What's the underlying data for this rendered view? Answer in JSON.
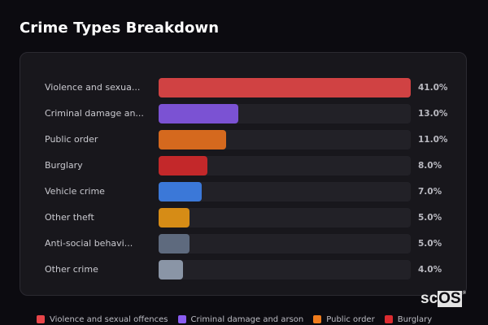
{
  "header": {
    "title": "Crime Types Breakdown"
  },
  "chart_data": {
    "type": "bar",
    "orientation": "horizontal",
    "title": "Crime Types Breakdown",
    "xlabel": "",
    "ylabel": "",
    "value_format": "percent",
    "grid": false,
    "legend_position": "bottom",
    "max_value": 41.0,
    "categories": [
      "Violence and sexual offences",
      "Criminal damage and arson",
      "Public order",
      "Burglary",
      "Vehicle crime",
      "Other theft",
      "Anti-social behaviour",
      "Other crime"
    ],
    "display_labels": [
      "Violence and sexua...",
      "Criminal damage an...",
      "Public order",
      "Burglary",
      "Vehicle crime",
      "Other theft",
      "Anti-social behavi...",
      "Other crime"
    ],
    "values": [
      41.0,
      13.0,
      11.0,
      8.0,
      7.0,
      5.0,
      5.0,
      4.0
    ],
    "value_labels": [
      "41.0%",
      "13.0%",
      "11.0%",
      "8.0%",
      "7.0%",
      "5.0%",
      "5.0%",
      "4.0%"
    ],
    "colors": [
      "#d04243",
      "#7b52d3",
      "#d5691e",
      "#c3282a",
      "#3b78d8",
      "#d68c16",
      "#5e6a7e",
      "#8a95a6"
    ]
  },
  "rows": [
    {
      "label": "Violence and sexua...",
      "value": "41.0%",
      "color": "#d04243",
      "pct": 41.0
    },
    {
      "label": "Criminal damage an...",
      "value": "13.0%",
      "color": "#7b52d3",
      "pct": 13.0
    },
    {
      "label": "Public order",
      "value": "11.0%",
      "color": "#d5691e",
      "pct": 11.0
    },
    {
      "label": "Burglary",
      "value": "8.0%",
      "color": "#c3282a",
      "pct": 8.0
    },
    {
      "label": "Vehicle crime",
      "value": "7.0%",
      "color": "#3b78d8",
      "pct": 7.0
    },
    {
      "label": "Other theft",
      "value": "5.0%",
      "color": "#d68c16",
      "pct": 5.0
    },
    {
      "label": "Anti-social behavi...",
      "value": "5.0%",
      "color": "#5e6a7e",
      "pct": 5.0
    },
    {
      "label": "Other crime",
      "value": "4.0%",
      "color": "#8a95a6",
      "pct": 4.0
    }
  ],
  "legend": [
    {
      "label": "Violence and sexual offences",
      "color": "#e84549"
    },
    {
      "label": "Criminal damage and arson",
      "color": "#8a5cf0"
    },
    {
      "label": "Public order",
      "color": "#f07c1c"
    },
    {
      "label": "Burglary",
      "color": "#dc2b30"
    }
  ],
  "watermark": {
    "prefix": "sc",
    "boxed": "OS",
    "mark": "®"
  }
}
